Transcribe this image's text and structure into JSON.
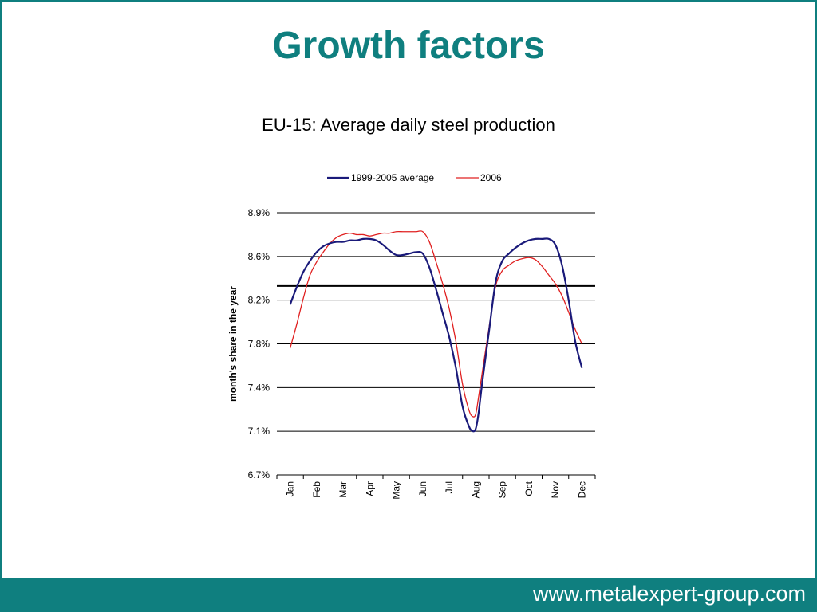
{
  "slide": {
    "title": "Growth factors",
    "accent_color": "#0f7f7f",
    "footer_url": "www.metalexpert-group.com"
  },
  "chart_data": {
    "type": "line",
    "title": "EU-15: Average daily steel production",
    "xlabel": "",
    "ylabel": "month's share in the year",
    "categories": [
      "Jan",
      "Feb",
      "Mar",
      "Apr",
      "May",
      "Jun",
      "Jul",
      "Aug",
      "Sep",
      "Oct",
      "Nov",
      "Dec"
    ],
    "yticks": [
      "6.7%",
      "7.1%",
      "7.4%",
      "7.8%",
      "8.2%",
      "8.6%",
      "8.9%"
    ],
    "ylim": [
      6.7,
      8.9
    ],
    "grid": true,
    "reference_line": 8.33,
    "legend_position": "top",
    "series": [
      {
        "name": "1999-2005 average",
        "color": "#1a1a7a",
        "x": [
          1,
          1.25,
          1.5,
          1.75,
          2,
          2.25,
          2.5,
          2.75,
          3,
          3.25,
          3.5,
          3.75,
          4,
          4.25,
          4.5,
          4.75,
          5,
          5.25,
          5.5,
          5.75,
          6,
          6.25,
          6.5,
          6.75,
          7,
          7.25,
          7.5,
          7.75,
          7.9,
          8,
          8.1,
          8.25,
          8.5,
          8.75,
          9,
          9.25,
          9.5,
          9.75,
          10,
          10.25,
          10.5,
          10.75,
          11,
          11.25,
          11.5,
          11.75,
          12
        ],
        "values": [
          8.16,
          8.32,
          8.46,
          8.56,
          8.63,
          8.67,
          8.69,
          8.7,
          8.7,
          8.71,
          8.71,
          8.72,
          8.72,
          8.71,
          8.68,
          8.64,
          8.61,
          8.61,
          8.62,
          8.63,
          8.62,
          8.5,
          8.3,
          8.08,
          7.86,
          7.58,
          7.27,
          7.13,
          7.1,
          7.12,
          7.22,
          7.46,
          7.92,
          8.37,
          8.56,
          8.62,
          8.66,
          8.69,
          8.71,
          8.72,
          8.72,
          8.72,
          8.68,
          8.52,
          8.2,
          7.82,
          7.58
        ]
      },
      {
        "name": "2006",
        "color": "#e02020",
        "x": [
          1,
          1.25,
          1.5,
          1.75,
          2,
          2.25,
          2.5,
          2.75,
          3,
          3.25,
          3.5,
          3.75,
          4,
          4.25,
          4.5,
          4.75,
          5,
          5.25,
          5.5,
          5.75,
          6,
          6.25,
          6.5,
          6.75,
          7,
          7.25,
          7.5,
          7.75,
          7.9,
          8,
          8.1,
          8.25,
          8.5,
          8.75,
          9,
          9.25,
          9.5,
          9.75,
          10,
          10.25,
          10.5,
          10.75,
          11,
          11.25,
          11.5,
          11.75,
          12
        ],
        "values": [
          7.76,
          7.98,
          8.22,
          8.43,
          8.55,
          8.63,
          8.69,
          8.73,
          8.75,
          8.76,
          8.75,
          8.75,
          8.74,
          8.75,
          8.76,
          8.76,
          8.77,
          8.77,
          8.77,
          8.77,
          8.77,
          8.7,
          8.55,
          8.35,
          8.12,
          7.82,
          7.43,
          7.24,
          7.2,
          7.22,
          7.33,
          7.55,
          7.95,
          8.33,
          8.47,
          8.52,
          8.56,
          8.58,
          8.59,
          8.57,
          8.51,
          8.43,
          8.35,
          8.24,
          8.09,
          7.93,
          7.8
        ]
      }
    ]
  }
}
